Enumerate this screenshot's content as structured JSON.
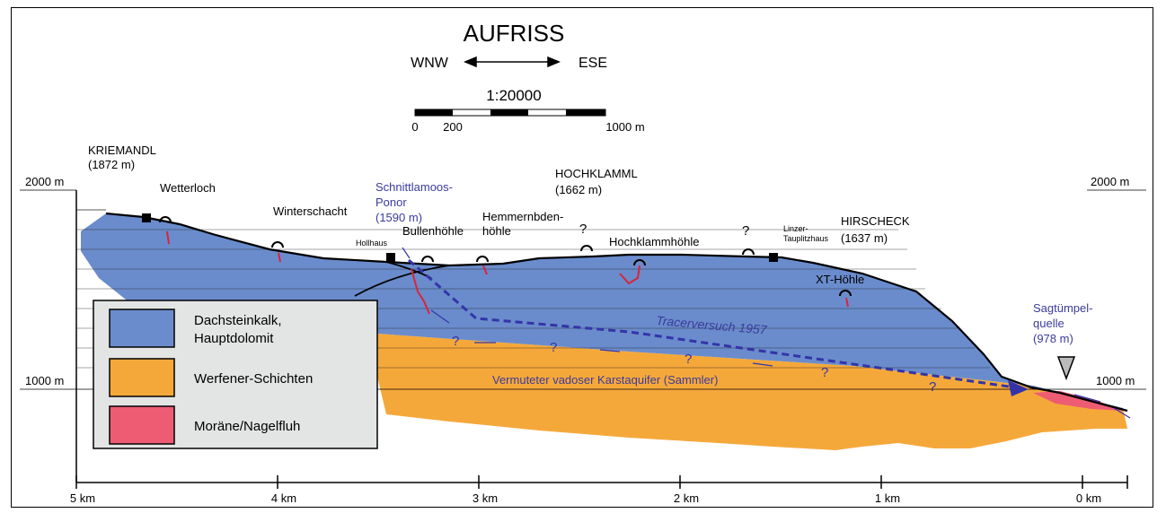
{
  "title": "AUFRISS",
  "direction": {
    "left": "WNW",
    "right": "ESE"
  },
  "scale": {
    "ratio": "1:20000",
    "tick_0": "0",
    "tick_200": "200",
    "tick_end": "1000 m"
  },
  "elevation": {
    "left_2000": "2000 m",
    "right_2000": "2000 m",
    "left_1000": "1000 m",
    "right_1000": "1000 m"
  },
  "distance_ticks": [
    "5 km",
    "4 km",
    "3 km",
    "2 km",
    "1 km",
    "0 km"
  ],
  "peaks": {
    "kriemandl": "KRIEMANDL",
    "kriemandl_alt": "(1872 m)",
    "hochklamml": "HOCHKLAMML",
    "hochklamml_alt": "(1662 m)",
    "hirscheck": "HIRSCHECK",
    "hirscheck_alt": "(1637 m)"
  },
  "features": {
    "wetterloch": "Wetterloch",
    "winterschacht": "Winterschacht",
    "hollhaus": "Hollhaus",
    "bullenhoehle": "Bullenhöhle",
    "hemmern_1": "Hemmernbden-",
    "hemmern_2": "höhle",
    "hochklammhoehle": "Hochklammhöhle",
    "linzer_1": "Linzer-",
    "linzer_2": "Tauplitzhaus",
    "xt_hoehle": "XT-Höhle"
  },
  "blue_labels": {
    "ponor_1": "Schnittlamoos-",
    "ponor_2": "Ponor",
    "ponor_3": "(1590 m)",
    "sagtuempel_1": "Sagtümpel-",
    "sagtuempel_2": "quelle",
    "sagtuempel_3": "(978 m)",
    "tracer": "Tracerversuch 1957",
    "aquifer": "Vermuteter vadoser Karstaquifer (Sammler)"
  },
  "legend": [
    {
      "label_1": "Dachsteinkalk,",
      "label_2": "Hauptdolomit",
      "color": "#6a8ccc"
    },
    {
      "label_1": "Werfener-Schichten",
      "label_2": "",
      "color": "#f5a83a"
    },
    {
      "label_1": "Moräne/Nagelfluh",
      "label_2": "",
      "color": "#ee5c74"
    }
  ],
  "colors": {
    "limestone": "#6a8ccc",
    "werfen": "#f5a83a",
    "moraine": "#ee5c74",
    "tracer": "#3434a8",
    "legend_bg": "#e3e4e4"
  }
}
